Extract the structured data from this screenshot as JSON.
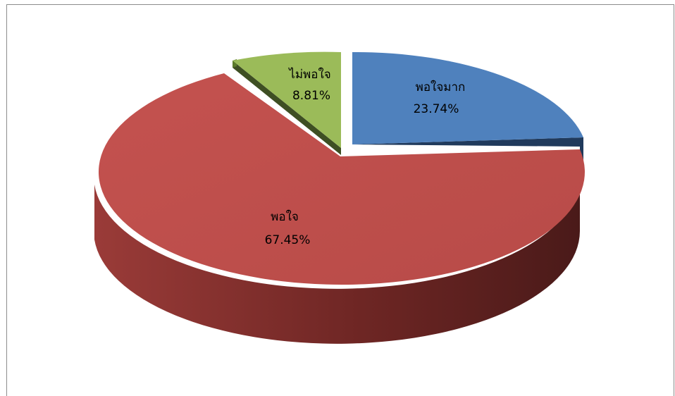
{
  "chart_data": {
    "type": "pie",
    "style": "3d-exploded",
    "slices": [
      {
        "name": "พอใจมาก",
        "value": 23.74,
        "label": "23.74%",
        "color": "#4F81BD",
        "exploded": true
      },
      {
        "name": "พอใจ",
        "value": 67.45,
        "label": "67.45%",
        "color": "#C0504D",
        "exploded": false
      },
      {
        "name": "ไม่พอใจ",
        "value": 8.81,
        "label": "8.81%",
        "color": "#9BBB59",
        "exploded": true
      }
    ]
  }
}
